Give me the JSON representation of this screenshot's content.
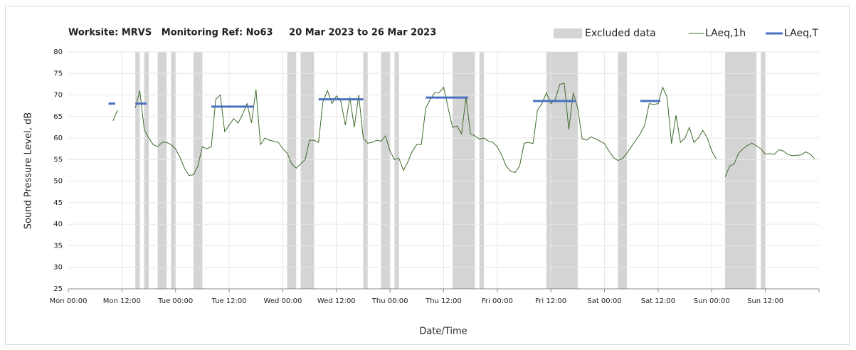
{
  "chart_data": {
    "type": "line",
    "title": "Worksite: MRVS   Monitoring Ref: No63     20 Mar 2023 to 26 Mar 2023",
    "xlabel": "Date/Time",
    "ylabel": "Sound Pressure Level, dB",
    "xlim": [
      0,
      168
    ],
    "ylim": [
      25,
      80
    ],
    "xticks": [
      {
        "value": 0,
        "label": "Mon 00:00"
      },
      {
        "value": 12,
        "label": "Mon 12:00"
      },
      {
        "value": 24,
        "label": "Tue 00:00"
      },
      {
        "value": 36,
        "label": "Tue 12:00"
      },
      {
        "value": 48,
        "label": "Wed 00:00"
      },
      {
        "value": 60,
        "label": "Wed 12:00"
      },
      {
        "value": 72,
        "label": "Thu 00:00"
      },
      {
        "value": 84,
        "label": "Thu 12:00"
      },
      {
        "value": 96,
        "label": "Fri 00:00"
      },
      {
        "value": 108,
        "label": "Fri 12:00"
      },
      {
        "value": 120,
        "label": "Sat 00:00"
      },
      {
        "value": 132,
        "label": "Sat 12:00"
      },
      {
        "value": 144,
        "label": "Sun 00:00"
      },
      {
        "value": 156,
        "label": "Sun 12:00"
      }
    ],
    "yticks": [
      25,
      30,
      35,
      40,
      45,
      50,
      55,
      60,
      65,
      70,
      75,
      80
    ],
    "grid": true,
    "legend": "top-right",
    "excluded": {
      "name": "Excluded data",
      "color": "#d4d4d4",
      "ranges": [
        [
          15,
          16
        ],
        [
          17,
          18
        ],
        [
          20,
          22
        ],
        [
          23,
          24
        ],
        [
          28,
          30
        ],
        [
          49,
          51
        ],
        [
          52,
          55
        ],
        [
          66,
          67
        ],
        [
          70,
          72
        ],
        [
          73,
          74
        ],
        [
          86,
          91
        ],
        [
          92,
          93
        ],
        [
          107,
          114
        ],
        [
          123,
          125
        ],
        [
          147,
          154
        ],
        [
          155,
          156
        ]
      ]
    },
    "x": [
      10,
      11,
      12,
      13,
      14,
      15,
      16,
      17,
      18,
      19,
      20,
      21,
      22,
      23,
      24,
      25,
      26,
      27,
      28,
      29,
      30,
      31,
      32,
      33,
      34,
      35,
      36,
      37,
      38,
      39,
      40,
      41,
      42,
      43,
      44,
      45,
      46,
      47,
      48,
      49,
      50,
      51,
      52,
      53,
      54,
      55,
      56,
      57,
      58,
      59,
      60,
      61,
      62,
      63,
      64,
      65,
      66,
      67,
      68,
      69,
      70,
      71,
      72,
      73,
      74,
      75,
      76,
      77,
      78,
      79,
      80,
      81,
      82,
      83,
      84,
      85,
      86,
      87,
      88,
      89,
      90,
      91,
      92,
      93,
      94,
      95,
      96,
      97,
      98,
      99,
      100,
      101,
      102,
      103,
      104,
      105,
      106,
      107,
      108,
      109,
      110,
      111,
      112,
      113,
      114,
      115,
      116,
      117,
      118,
      119,
      120,
      121,
      122,
      123,
      124,
      125,
      126,
      127,
      128,
      129,
      130,
      131,
      132,
      133,
      134,
      135,
      136,
      137,
      138,
      139,
      140,
      141,
      142,
      143,
      144,
      145,
      146,
      147,
      148,
      149,
      150,
      151,
      152,
      153,
      154,
      155,
      156,
      157,
      158,
      159,
      160,
      161,
      162,
      163,
      164,
      165,
      166,
      167
    ],
    "series": [
      {
        "name": "LAeq,1h",
        "color": "#3f6b2c",
        "values": [
          64,
          66.5,
          null,
          null,
          null,
          67,
          71,
          62,
          60,
          58.5,
          58,
          59,
          59,
          58.5,
          57.5,
          55.5,
          53,
          51.3,
          51.5,
          53.5,
          58,
          57.5,
          58,
          69,
          70,
          61.5,
          63,
          64.5,
          63.5,
          65.5,
          68,
          63.5,
          71.3,
          58.5,
          60,
          59.5,
          59.3,
          59,
          57.5,
          56.5,
          54,
          53,
          54,
          55,
          59.5,
          59.5,
          59,
          68.5,
          71,
          68,
          69.8,
          68.5,
          63,
          69.5,
          62.5,
          70,
          60,
          58.8,
          59,
          59.5,
          59.3,
          60.5,
          57,
          55,
          55.3,
          52.5,
          54.5,
          57,
          58.5,
          58.5,
          67,
          69,
          70.5,
          70.5,
          71.8,
          67,
          62.5,
          62.8,
          61,
          69.5,
          61,
          60.5,
          59.8,
          60,
          59.3,
          59,
          58,
          56,
          53.5,
          52.3,
          52,
          53.5,
          58.8,
          59,
          58.7,
          66.5,
          68,
          70.5,
          68,
          69,
          72.5,
          72.7,
          62,
          70.5,
          67,
          59.8,
          59.5,
          60.3,
          59.8,
          59.3,
          58.7,
          57,
          55.5,
          54.8,
          55.2,
          56.5,
          58,
          59.5,
          61,
          63,
          68,
          67.8,
          68,
          71.8,
          69.5,
          58.7,
          65.3,
          59,
          60,
          62.5,
          59,
          60,
          61.8,
          60,
          57,
          55.2,
          null,
          51,
          53.5,
          54,
          56.5,
          57.5,
          58.3,
          58.8,
          58.2,
          57.5,
          56.3,
          56.4,
          56.2,
          57.3,
          57,
          56.2,
          55.9,
          56,
          56.1,
          56.8,
          56.3,
          55.2
        ]
      },
      {
        "name": "LAeq,T",
        "color": "#4a72c0",
        "segments": [
          {
            "x": [
              9,
              10.5
            ],
            "value": 68
          },
          {
            "x": [
              15,
              17.5
            ],
            "value": 68
          },
          {
            "x": [
              32,
              41.5
            ],
            "value": 67.3
          },
          {
            "x": [
              56,
              66
            ],
            "value": 69
          },
          {
            "x": [
              80,
              89.5
            ],
            "value": 69.4
          },
          {
            "x": [
              104,
              113.5
            ],
            "value": 68.6
          },
          {
            "x": [
              128,
              132.5
            ],
            "value": 68.6
          }
        ]
      }
    ]
  }
}
